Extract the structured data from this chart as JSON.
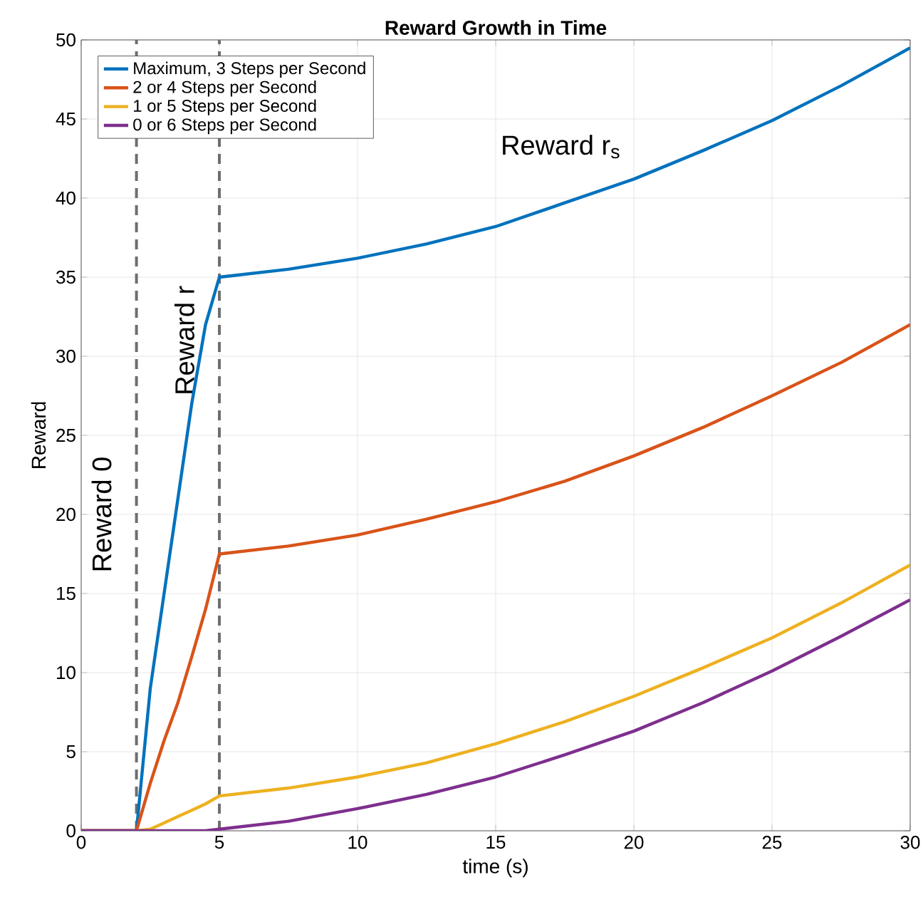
{
  "chart_data": {
    "type": "line",
    "title": "Reward Growth in Time",
    "xlabel": "time (s)",
    "ylabel": "Reward",
    "x": [
      0,
      1,
      2,
      2.5,
      3,
      3.5,
      4,
      4.5,
      5,
      7.5,
      10,
      12.5,
      15,
      17.5,
      20,
      22.5,
      25,
      27.5,
      30
    ],
    "series": [
      {
        "name": "Maximum, 3 Steps per Second",
        "color": "#0072bd",
        "values": [
          0,
          0,
          0,
          9,
          15,
          21,
          27,
          32,
          35,
          35.5,
          36.2,
          37.1,
          38.2,
          39.7,
          41.2,
          43.0,
          44.9,
          47.1,
          49.5
        ]
      },
      {
        "name": "2 or 4 Steps per Second",
        "color": "#d95319",
        "values": [
          0,
          0,
          0,
          3,
          5.7,
          8.1,
          11,
          14,
          17.5,
          18.0,
          18.7,
          19.7,
          20.8,
          22.1,
          23.7,
          25.5,
          27.5,
          29.6,
          32.0
        ]
      },
      {
        "name": "1 or 5 Steps per Second",
        "color": "#edb120",
        "values": [
          0,
          0,
          0,
          0.1,
          0.5,
          0.9,
          1.3,
          1.7,
          2.2,
          2.7,
          3.4,
          4.3,
          5.5,
          6.9,
          8.5,
          10.3,
          12.2,
          14.4,
          16.8
        ]
      },
      {
        "name": "0 or 6 Steps per Second",
        "color": "#7e2f8e",
        "values": [
          0,
          0,
          0,
          0,
          0,
          0,
          0,
          0,
          0.1,
          0.6,
          1.4,
          2.3,
          3.4,
          4.8,
          6.3,
          8.1,
          10.1,
          12.3,
          14.6
        ]
      }
    ],
    "xlim": [
      0,
      30
    ],
    "ylim": [
      0,
      50
    ],
    "xticks": [
      0,
      5,
      10,
      15,
      20,
      25,
      30
    ],
    "yticks": [
      0,
      5,
      10,
      15,
      20,
      25,
      30,
      35,
      40,
      45,
      50
    ],
    "ref_lines": [
      {
        "axis": "x",
        "value": 2,
        "label": "Reward 0",
        "color": "#6e6e6e",
        "line_style": "dashed"
      },
      {
        "axis": "x",
        "value": 5,
        "label": "Reward r",
        "color": "#6e6e6e",
        "line_style": "dashed"
      }
    ],
    "annotations": [
      "Reward r$_{s}$"
    ],
    "grid": true,
    "legend": "top left",
    "line_style": "solid",
    "marker": "none"
  }
}
